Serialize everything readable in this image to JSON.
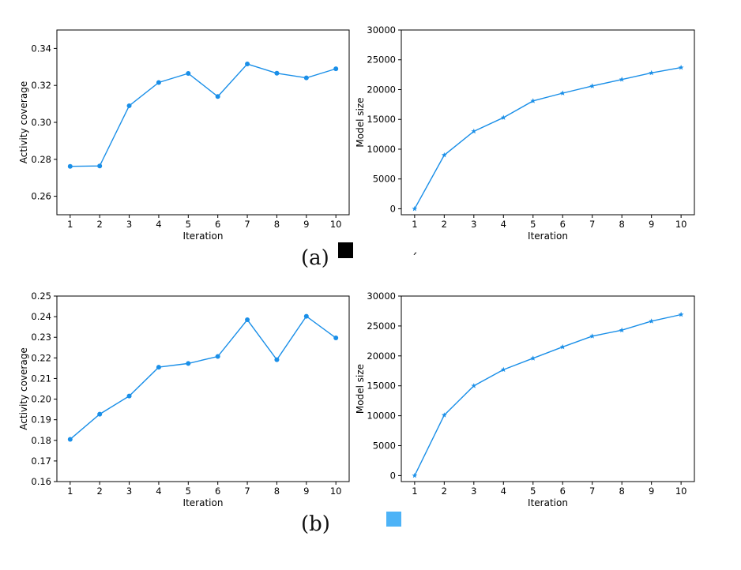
{
  "captions": {
    "a": "(a)",
    "b": "(b)",
    "tick_mark": "´"
  },
  "colors": {
    "line": "#1a8fe8",
    "swatch_a": "#000000",
    "swatch_b": "#4db3f7"
  },
  "chart_data": [
    {
      "type": "line",
      "panel": "a-left",
      "xlabel": "Iteration",
      "ylabel": "Activity coverage",
      "marker": "circle",
      "x": [
        1,
        2,
        3,
        4,
        5,
        6,
        7,
        8,
        9,
        10
      ],
      "values": [
        0.2762,
        0.2764,
        0.309,
        0.3216,
        0.3265,
        0.314,
        0.3316,
        0.3266,
        0.3241,
        0.329
      ],
      "ylim": [
        0.25,
        0.35
      ],
      "yticks": [
        "0.26",
        "0.28",
        "0.30",
        "0.32",
        "0.34"
      ],
      "ytick_values": [
        0.26,
        0.28,
        0.3,
        0.32,
        0.34
      ],
      "xticks": [
        "1",
        "2",
        "3",
        "4",
        "5",
        "6",
        "7",
        "8",
        "9",
        "10"
      ]
    },
    {
      "type": "line",
      "panel": "a-right",
      "xlabel": "Iteration",
      "ylabel": "Model size",
      "marker": "star",
      "x": [
        1,
        2,
        3,
        4,
        5,
        6,
        7,
        8,
        9,
        10
      ],
      "values": [
        0,
        9000,
        13000,
        15300,
        18100,
        19400,
        20600,
        21700,
        22800,
        23700
      ],
      "ylim": [
        -1000,
        30000
      ],
      "yticks": [
        "0",
        "5000",
        "10000",
        "15000",
        "20000",
        "25000",
        "30000"
      ],
      "ytick_values": [
        0,
        5000,
        10000,
        15000,
        20000,
        25000,
        30000
      ],
      "xticks": [
        "1",
        "2",
        "3",
        "4",
        "5",
        "6",
        "7",
        "8",
        "9",
        "10"
      ]
    },
    {
      "type": "line",
      "panel": "b-left",
      "xlabel": "Iteration",
      "ylabel": "Activity coverage",
      "marker": "circle",
      "x": [
        1,
        2,
        3,
        4,
        5,
        6,
        7,
        8,
        9,
        10
      ],
      "values": [
        0.1805,
        0.1927,
        0.2015,
        0.2155,
        0.2173,
        0.2207,
        0.2385,
        0.2191,
        0.2402,
        0.2297
      ],
      "ylim": [
        0.16,
        0.25
      ],
      "yticks": [
        "0.16",
        "0.17",
        "0.18",
        "0.19",
        "0.20",
        "0.21",
        "0.22",
        "0.23",
        "0.24",
        "0.25"
      ],
      "ytick_values": [
        0.16,
        0.17,
        0.18,
        0.19,
        0.2,
        0.21,
        0.22,
        0.23,
        0.24,
        0.25
      ],
      "xticks": [
        "1",
        "2",
        "3",
        "4",
        "5",
        "6",
        "7",
        "8",
        "9",
        "10"
      ]
    },
    {
      "type": "line",
      "panel": "b-right",
      "xlabel": "Iteration",
      "ylabel": "Model size",
      "marker": "star",
      "x": [
        1,
        2,
        3,
        4,
        5,
        6,
        7,
        8,
        9,
        10
      ],
      "values": [
        0,
        10100,
        15000,
        17700,
        19600,
        21500,
        23300,
        24300,
        25800,
        26900
      ],
      "ylim": [
        -1000,
        30000
      ],
      "yticks": [
        "0",
        "5000",
        "10000",
        "15000",
        "20000",
        "25000",
        "30000"
      ],
      "ytick_values": [
        0,
        5000,
        10000,
        15000,
        20000,
        25000,
        30000
      ],
      "xticks": [
        "1",
        "2",
        "3",
        "4",
        "5",
        "6",
        "7",
        "8",
        "9",
        "10"
      ]
    }
  ]
}
